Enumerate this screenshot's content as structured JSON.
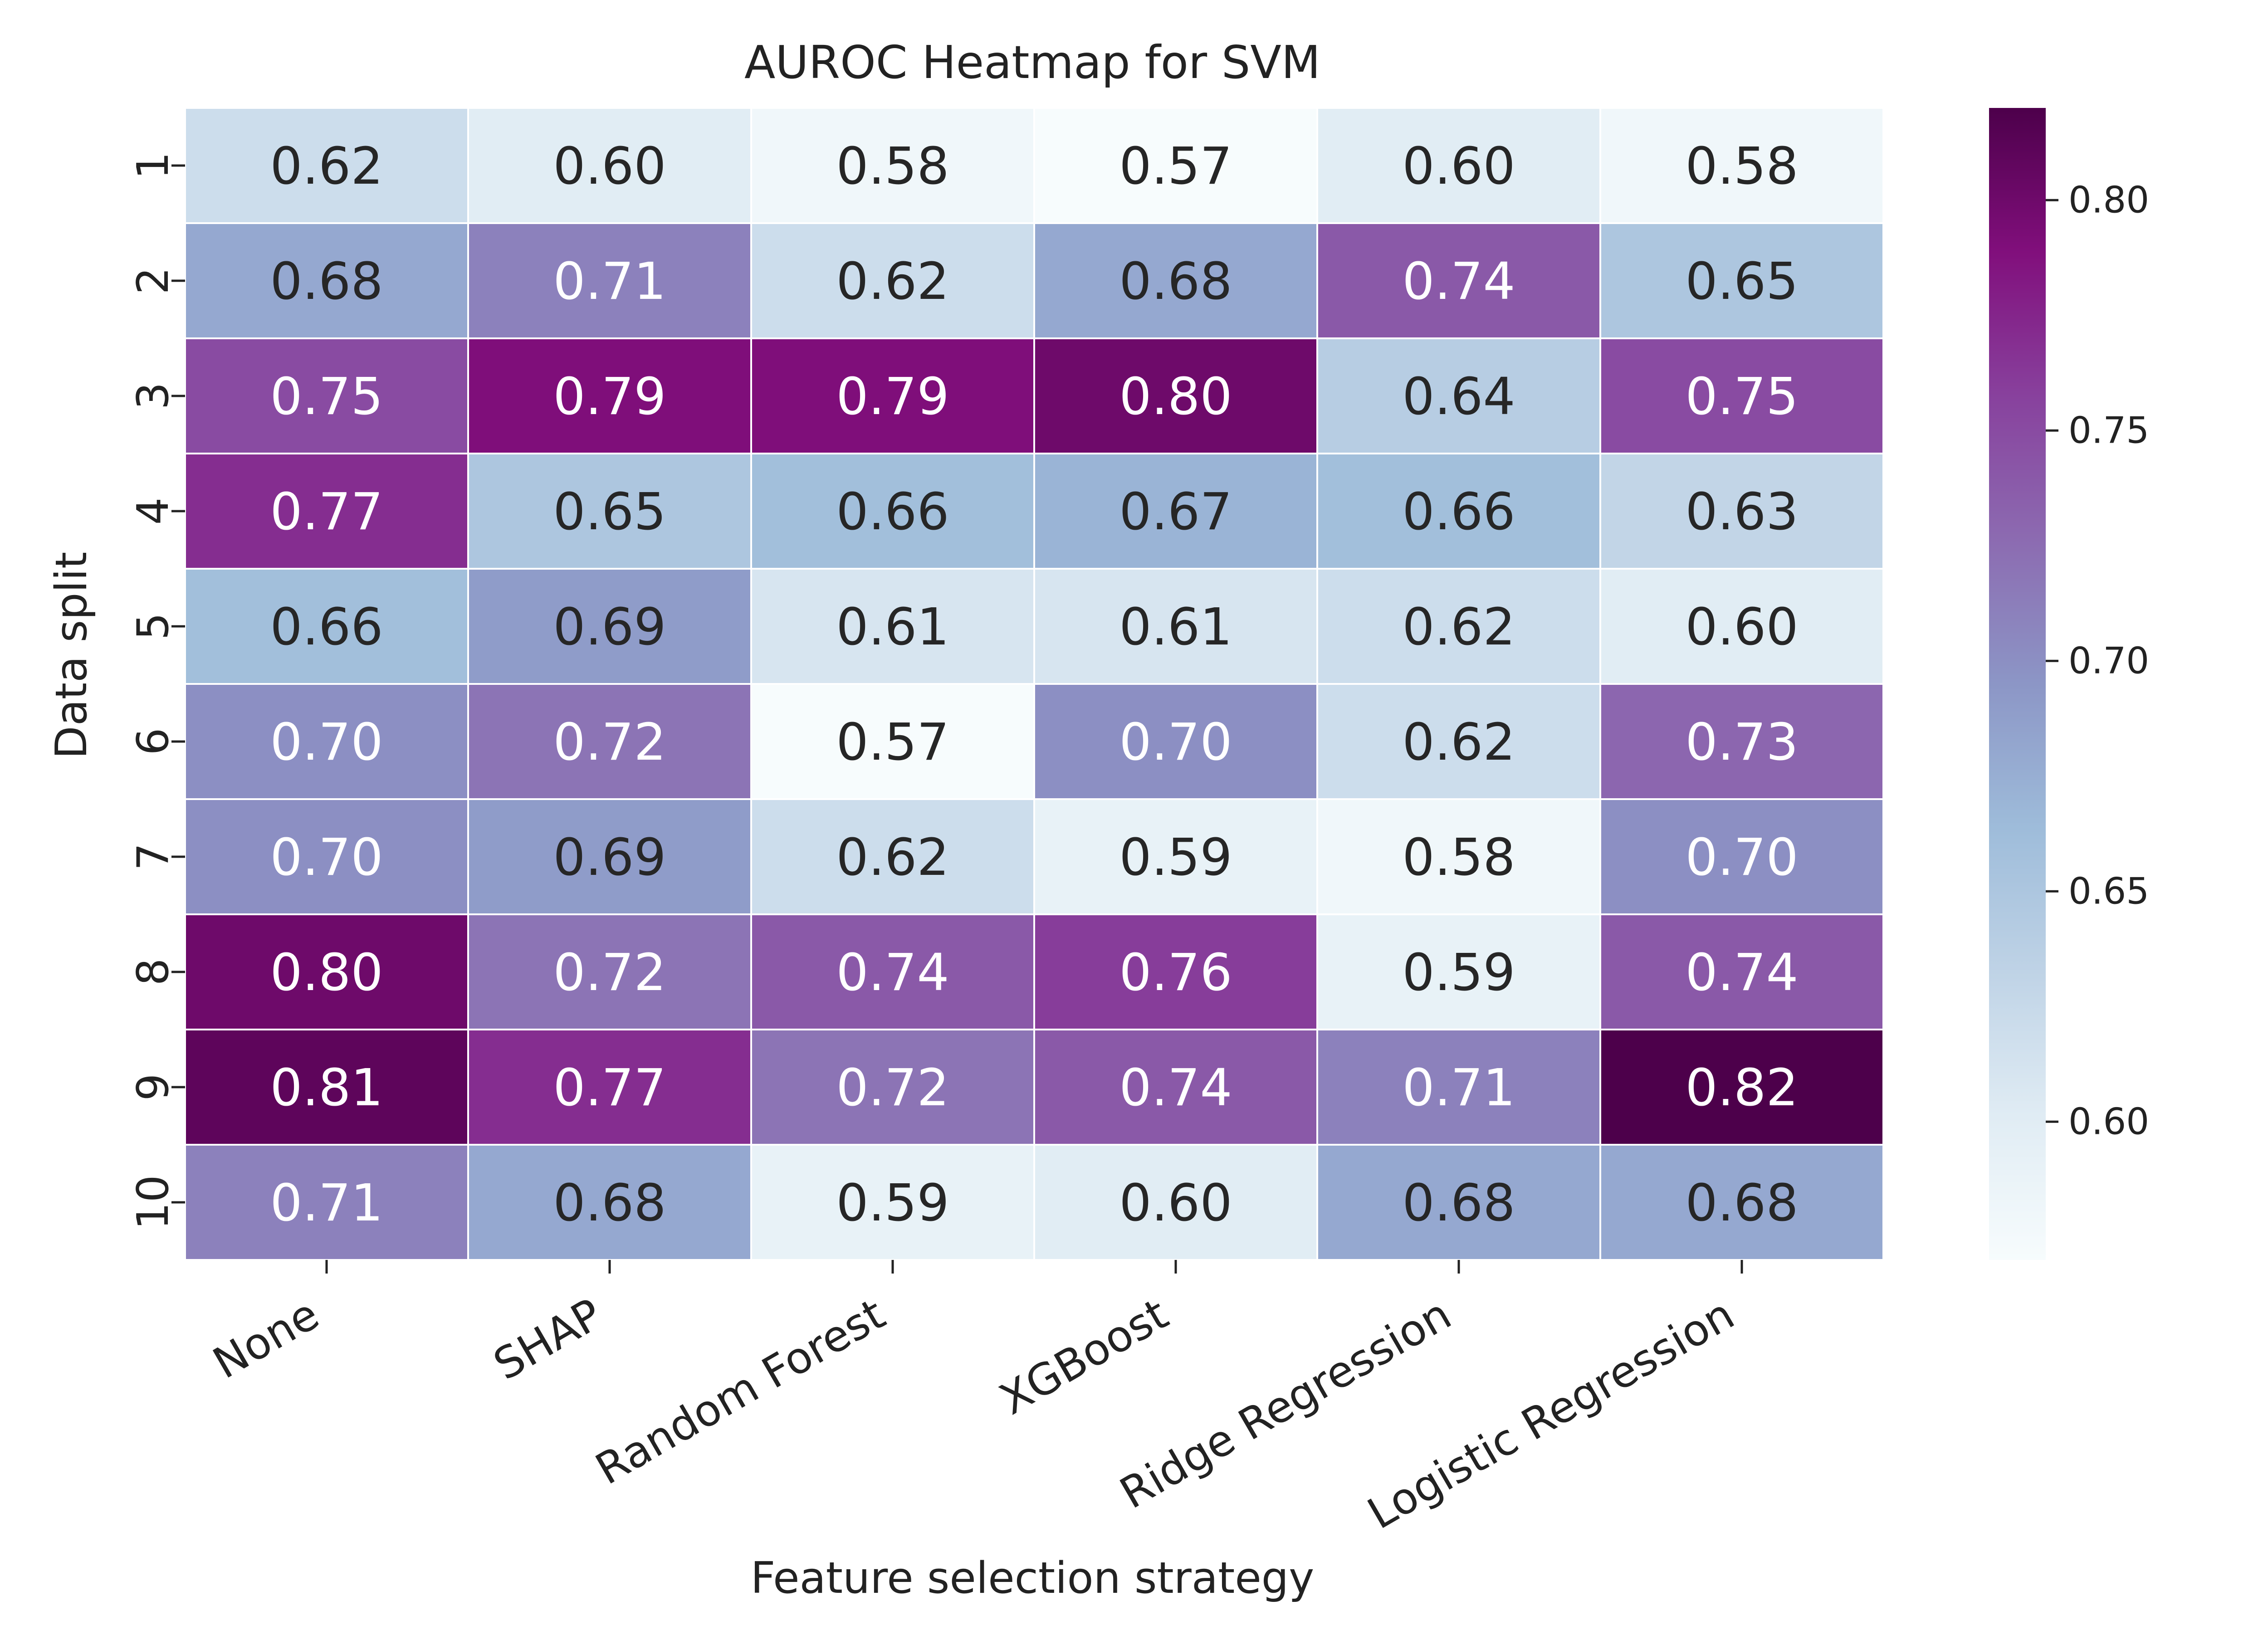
{
  "chart_data": {
    "type": "heatmap",
    "title": "AUROC Heatmap for SVM",
    "xlabel": "Feature selection strategy",
    "ylabel": "Data split",
    "x_categories": [
      "None",
      "SHAP",
      "Random Forest",
      "XGBoost",
      "Ridge Regression",
      "Logistic Regression"
    ],
    "y_categories": [
      "1",
      "2",
      "3",
      "4",
      "5",
      "6",
      "7",
      "8",
      "9",
      "10"
    ],
    "values": [
      [
        0.62,
        0.6,
        0.58,
        0.57,
        0.6,
        0.58
      ],
      [
        0.68,
        0.71,
        0.62,
        0.68,
        0.74,
        0.65
      ],
      [
        0.75,
        0.79,
        0.79,
        0.8,
        0.64,
        0.75
      ],
      [
        0.77,
        0.65,
        0.66,
        0.67,
        0.66,
        0.63
      ],
      [
        0.66,
        0.69,
        0.61,
        0.61,
        0.62,
        0.6
      ],
      [
        0.7,
        0.72,
        0.57,
        0.7,
        0.62,
        0.73
      ],
      [
        0.7,
        0.69,
        0.62,
        0.59,
        0.58,
        0.7
      ],
      [
        0.8,
        0.72,
        0.74,
        0.76,
        0.59,
        0.74
      ],
      [
        0.81,
        0.77,
        0.72,
        0.74,
        0.71,
        0.82
      ],
      [
        0.71,
        0.68,
        0.59,
        0.6,
        0.68,
        0.68
      ]
    ],
    "value_format": "0.00",
    "colormap": "BuPu",
    "colorbar": {
      "range": [
        0.57,
        0.82
      ],
      "ticks": [
        0.6,
        0.65,
        0.7,
        0.75,
        0.8
      ],
      "tick_labels": [
        "0.60",
        "0.65",
        "0.70",
        "0.75",
        "0.80"
      ]
    },
    "grid": false,
    "legend": "colorbar right"
  }
}
